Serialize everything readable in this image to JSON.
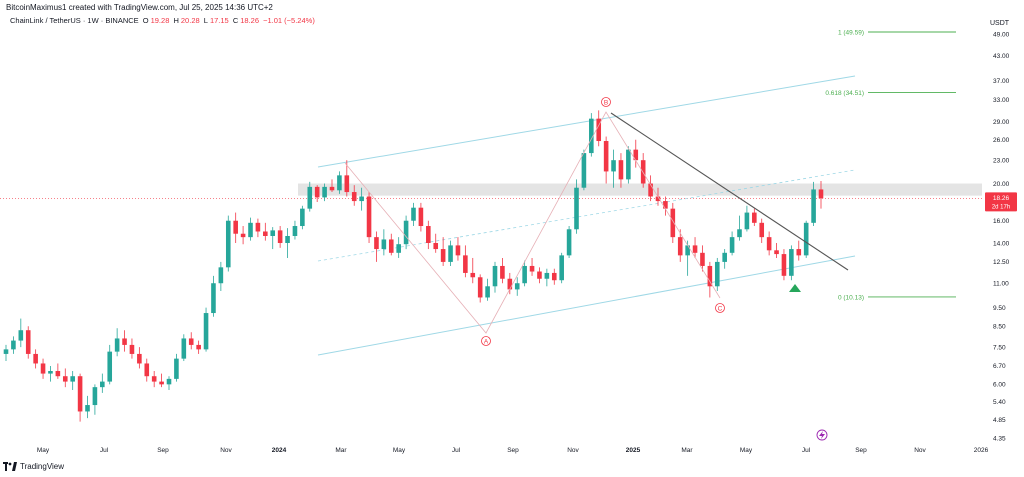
{
  "header": {
    "title": "BitcoinMaximus1 created with TradingView.com, Jul 25, 2025 14:36 UTC+2"
  },
  "symbol": {
    "name": "ChainLink / TetherUS · 1W · BINANCE",
    "open_label": "O",
    "open": "19.28",
    "high_label": "H",
    "high": "20.28",
    "low_label": "L",
    "low": "17.15",
    "close_label": "C",
    "close": "18.26",
    "change": "−1.01 (−5.24%)"
  },
  "price_badge": {
    "price": "18.26",
    "countdown": "2d 17h"
  },
  "brand": {
    "name": "TradingView"
  },
  "colors": {
    "up": "#26a69a",
    "down": "#f23645",
    "channel": "#9fd8e6",
    "fib": "#4caf50",
    "trend": "#555555",
    "wave": "#f23645",
    "zone": "#d9d9d9"
  },
  "chart_data": {
    "type": "candlestick",
    "yaxis_unit": "USDT",
    "scale": "log",
    "grid": false,
    "y_ticks": [
      "49.00",
      "43.00",
      "37.00",
      "33.00",
      "29.00",
      "26.00",
      "23.00",
      "20.00",
      "16.00",
      "14.00",
      "12.50",
      "11.00",
      "9.50",
      "8.50",
      "7.50",
      "6.70",
      "6.00",
      "5.40",
      "4.85",
      "4.35"
    ],
    "x_ticks": [
      "May",
      "Jul",
      "Sep",
      "Nov",
      "2024",
      "Mar",
      "May",
      "Jul",
      "Sep",
      "Nov",
      "2025",
      "Mar",
      "May",
      "Jul",
      "Sep",
      "Nov",
      "2026"
    ],
    "x_ticks_bold": [
      "2024",
      "2025"
    ],
    "fib_levels": [
      {
        "label": "1 (49.59)",
        "value": 49.59
      },
      {
        "label": "0.618 (34.51)",
        "value": 34.51
      },
      {
        "label": "0 (10.13)",
        "value": 10.13
      }
    ],
    "wave_labels": [
      "A",
      "B",
      "C"
    ],
    "resistance_zone": [
      18.6,
      20.0
    ],
    "candles": [
      {
        "o": 7.2,
        "h": 7.6,
        "l": 6.9,
        "c": 7.4
      },
      {
        "o": 7.4,
        "h": 8.0,
        "l": 7.2,
        "c": 7.8
      },
      {
        "o": 7.8,
        "h": 8.9,
        "l": 7.5,
        "c": 8.3
      },
      {
        "o": 8.3,
        "h": 8.5,
        "l": 7.0,
        "c": 7.2
      },
      {
        "o": 7.2,
        "h": 7.4,
        "l": 6.6,
        "c": 6.8
      },
      {
        "o": 6.8,
        "h": 7.0,
        "l": 6.2,
        "c": 6.4
      },
      {
        "o": 6.4,
        "h": 6.7,
        "l": 6.1,
        "c": 6.5
      },
      {
        "o": 6.5,
        "h": 6.8,
        "l": 6.2,
        "c": 6.3
      },
      {
        "o": 6.3,
        "h": 6.6,
        "l": 5.9,
        "c": 6.1
      },
      {
        "o": 6.1,
        "h": 6.5,
        "l": 5.8,
        "c": 6.3
      },
      {
        "o": 6.3,
        "h": 6.4,
        "l": 4.8,
        "c": 5.1
      },
      {
        "o": 5.1,
        "h": 5.6,
        "l": 4.9,
        "c": 5.3
      },
      {
        "o": 5.3,
        "h": 6.0,
        "l": 5.0,
        "c": 5.9
      },
      {
        "o": 5.9,
        "h": 6.4,
        "l": 5.7,
        "c": 6.1
      },
      {
        "o": 6.1,
        "h": 7.6,
        "l": 6.0,
        "c": 7.3
      },
      {
        "o": 7.3,
        "h": 8.4,
        "l": 7.1,
        "c": 7.9
      },
      {
        "o": 7.9,
        "h": 8.3,
        "l": 7.3,
        "c": 7.6
      },
      {
        "o": 7.6,
        "h": 7.9,
        "l": 7.0,
        "c": 7.2
      },
      {
        "o": 7.2,
        "h": 7.5,
        "l": 6.6,
        "c": 6.8
      },
      {
        "o": 6.8,
        "h": 7.0,
        "l": 6.1,
        "c": 6.3
      },
      {
        "o": 6.3,
        "h": 6.5,
        "l": 5.9,
        "c": 6.1
      },
      {
        "o": 6.1,
        "h": 6.4,
        "l": 5.9,
        "c": 6.0
      },
      {
        "o": 6.0,
        "h": 6.3,
        "l": 5.8,
        "c": 6.2
      },
      {
        "o": 6.2,
        "h": 7.2,
        "l": 6.1,
        "c": 7.0
      },
      {
        "o": 7.0,
        "h": 8.1,
        "l": 6.9,
        "c": 7.9
      },
      {
        "o": 7.9,
        "h": 8.2,
        "l": 7.4,
        "c": 7.6
      },
      {
        "o": 7.6,
        "h": 7.8,
        "l": 7.2,
        "c": 7.4
      },
      {
        "o": 7.4,
        "h": 9.5,
        "l": 7.3,
        "c": 9.2
      },
      {
        "o": 9.2,
        "h": 11.5,
        "l": 9.0,
        "c": 11.0
      },
      {
        "o": 11.0,
        "h": 12.5,
        "l": 10.5,
        "c": 12.1
      },
      {
        "o": 12.1,
        "h": 16.5,
        "l": 11.8,
        "c": 16.0
      },
      {
        "o": 16.0,
        "h": 16.8,
        "l": 14.0,
        "c": 14.8
      },
      {
        "o": 14.8,
        "h": 15.5,
        "l": 13.9,
        "c": 14.5
      },
      {
        "o": 14.5,
        "h": 16.3,
        "l": 14.2,
        "c": 15.8
      },
      {
        "o": 15.8,
        "h": 16.2,
        "l": 14.5,
        "c": 15.0
      },
      {
        "o": 15.0,
        "h": 15.8,
        "l": 14.2,
        "c": 14.6
      },
      {
        "o": 14.6,
        "h": 15.4,
        "l": 13.5,
        "c": 15.1
      },
      {
        "o": 15.1,
        "h": 15.5,
        "l": 13.6,
        "c": 14.0
      },
      {
        "o": 14.0,
        "h": 15.3,
        "l": 12.8,
        "c": 14.6
      },
      {
        "o": 14.6,
        "h": 16.0,
        "l": 14.3,
        "c": 15.5
      },
      {
        "o": 15.5,
        "h": 17.5,
        "l": 15.2,
        "c": 17.2
      },
      {
        "o": 17.2,
        "h": 20.2,
        "l": 16.9,
        "c": 19.6
      },
      {
        "o": 19.6,
        "h": 19.8,
        "l": 17.9,
        "c": 18.4
      },
      {
        "o": 18.4,
        "h": 20.0,
        "l": 18.0,
        "c": 19.6
      },
      {
        "o": 19.6,
        "h": 20.5,
        "l": 19.0,
        "c": 19.2
      },
      {
        "o": 19.2,
        "h": 21.5,
        "l": 18.8,
        "c": 21.0
      },
      {
        "o": 21.0,
        "h": 23.0,
        "l": 18.5,
        "c": 19.0
      },
      {
        "o": 19.0,
        "h": 19.8,
        "l": 17.5,
        "c": 18.0
      },
      {
        "o": 18.0,
        "h": 19.5,
        "l": 17.0,
        "c": 18.5
      },
      {
        "o": 18.5,
        "h": 19.0,
        "l": 14.0,
        "c": 14.5
      },
      {
        "o": 14.5,
        "h": 15.0,
        "l": 12.5,
        "c": 13.5
      },
      {
        "o": 13.5,
        "h": 15.2,
        "l": 13.0,
        "c": 14.3
      },
      {
        "o": 14.3,
        "h": 14.8,
        "l": 13.0,
        "c": 13.2
      },
      {
        "o": 13.2,
        "h": 14.5,
        "l": 12.8,
        "c": 13.9
      },
      {
        "o": 13.9,
        "h": 16.5,
        "l": 13.5,
        "c": 16.0
      },
      {
        "o": 16.0,
        "h": 17.8,
        "l": 15.5,
        "c": 17.3
      },
      {
        "o": 17.3,
        "h": 17.8,
        "l": 15.0,
        "c": 15.5
      },
      {
        "o": 15.5,
        "h": 16.0,
        "l": 13.5,
        "c": 14.0
      },
      {
        "o": 14.0,
        "h": 14.8,
        "l": 13.2,
        "c": 13.5
      },
      {
        "o": 13.5,
        "h": 14.5,
        "l": 12.2,
        "c": 12.5
      },
      {
        "o": 12.5,
        "h": 14.2,
        "l": 12.2,
        "c": 13.8
      },
      {
        "o": 13.8,
        "h": 14.5,
        "l": 12.6,
        "c": 13.0
      },
      {
        "o": 13.0,
        "h": 13.8,
        "l": 11.4,
        "c": 11.7
      },
      {
        "o": 11.7,
        "h": 12.8,
        "l": 11.0,
        "c": 11.4
      },
      {
        "o": 11.4,
        "h": 11.6,
        "l": 9.8,
        "c": 10.1
      },
      {
        "o": 10.1,
        "h": 11.3,
        "l": 9.9,
        "c": 10.8
      },
      {
        "o": 10.8,
        "h": 12.5,
        "l": 10.4,
        "c": 12.2
      },
      {
        "o": 12.2,
        "h": 12.8,
        "l": 11.0,
        "c": 11.3
      },
      {
        "o": 11.3,
        "h": 11.7,
        "l": 10.3,
        "c": 10.6
      },
      {
        "o": 10.6,
        "h": 11.4,
        "l": 10.2,
        "c": 11.0
      },
      {
        "o": 11.0,
        "h": 12.6,
        "l": 10.8,
        "c": 12.2
      },
      {
        "o": 12.2,
        "h": 12.8,
        "l": 11.5,
        "c": 11.8
      },
      {
        "o": 11.8,
        "h": 12.1,
        "l": 11.0,
        "c": 11.3
      },
      {
        "o": 11.3,
        "h": 12.0,
        "l": 10.8,
        "c": 11.7
      },
      {
        "o": 11.7,
        "h": 12.0,
        "l": 10.9,
        "c": 11.2
      },
      {
        "o": 11.2,
        "h": 13.2,
        "l": 11.0,
        "c": 13.0
      },
      {
        "o": 13.0,
        "h": 15.5,
        "l": 12.8,
        "c": 15.2
      },
      {
        "o": 15.2,
        "h": 20.5,
        "l": 14.8,
        "c": 19.5
      },
      {
        "o": 19.5,
        "h": 24.5,
        "l": 19.2,
        "c": 24.0
      },
      {
        "o": 24.0,
        "h": 30.5,
        "l": 23.5,
        "c": 29.5
      },
      {
        "o": 29.5,
        "h": 31.0,
        "l": 25.0,
        "c": 25.8
      },
      {
        "o": 25.8,
        "h": 26.5,
        "l": 20.0,
        "c": 21.5
      },
      {
        "o": 21.5,
        "h": 24.5,
        "l": 19.5,
        "c": 23.0
      },
      {
        "o": 23.0,
        "h": 24.0,
        "l": 19.5,
        "c": 20.5
      },
      {
        "o": 20.5,
        "h": 25.0,
        "l": 20.0,
        "c": 24.5
      },
      {
        "o": 24.5,
        "h": 26.0,
        "l": 22.0,
        "c": 23.0
      },
      {
        "o": 23.0,
        "h": 24.0,
        "l": 19.5,
        "c": 20.0
      },
      {
        "o": 20.0,
        "h": 21.0,
        "l": 18.0,
        "c": 18.5
      },
      {
        "o": 18.5,
        "h": 19.5,
        "l": 17.5,
        "c": 18.0
      },
      {
        "o": 18.0,
        "h": 18.5,
        "l": 16.5,
        "c": 17.2
      },
      {
        "o": 17.2,
        "h": 17.8,
        "l": 14.0,
        "c": 14.5
      },
      {
        "o": 14.5,
        "h": 15.2,
        "l": 12.5,
        "c": 13.0
      },
      {
        "o": 13.0,
        "h": 14.2,
        "l": 11.5,
        "c": 13.8
      },
      {
        "o": 13.8,
        "h": 14.5,
        "l": 12.8,
        "c": 13.2
      },
      {
        "o": 13.2,
        "h": 13.8,
        "l": 11.8,
        "c": 12.2
      },
      {
        "o": 12.2,
        "h": 12.5,
        "l": 10.1,
        "c": 10.8
      },
      {
        "o": 10.8,
        "h": 12.8,
        "l": 10.5,
        "c": 12.5
      },
      {
        "o": 12.5,
        "h": 13.5,
        "l": 12.0,
        "c": 13.2
      },
      {
        "o": 13.2,
        "h": 15.0,
        "l": 13.0,
        "c": 14.5
      },
      {
        "o": 14.5,
        "h": 16.5,
        "l": 14.2,
        "c": 15.2
      },
      {
        "o": 15.2,
        "h": 17.5,
        "l": 15.0,
        "c": 16.8
      },
      {
        "o": 16.8,
        "h": 17.2,
        "l": 15.5,
        "c": 15.8
      },
      {
        "o": 15.8,
        "h": 16.2,
        "l": 14.0,
        "c": 14.5
      },
      {
        "o": 14.5,
        "h": 15.0,
        "l": 13.0,
        "c": 13.4
      },
      {
        "o": 13.4,
        "h": 14.0,
        "l": 12.8,
        "c": 13.1
      },
      {
        "o": 13.1,
        "h": 13.5,
        "l": 11.2,
        "c": 11.5
      },
      {
        "o": 11.5,
        "h": 13.8,
        "l": 11.2,
        "c": 13.5
      },
      {
        "o": 13.5,
        "h": 14.2,
        "l": 12.6,
        "c": 13.0
      },
      {
        "o": 13.0,
        "h": 16.0,
        "l": 12.8,
        "c": 15.8
      },
      {
        "o": 15.8,
        "h": 20.2,
        "l": 15.5,
        "c": 19.3
      },
      {
        "o": 19.3,
        "h": 20.3,
        "l": 17.2,
        "c": 18.3
      }
    ]
  }
}
